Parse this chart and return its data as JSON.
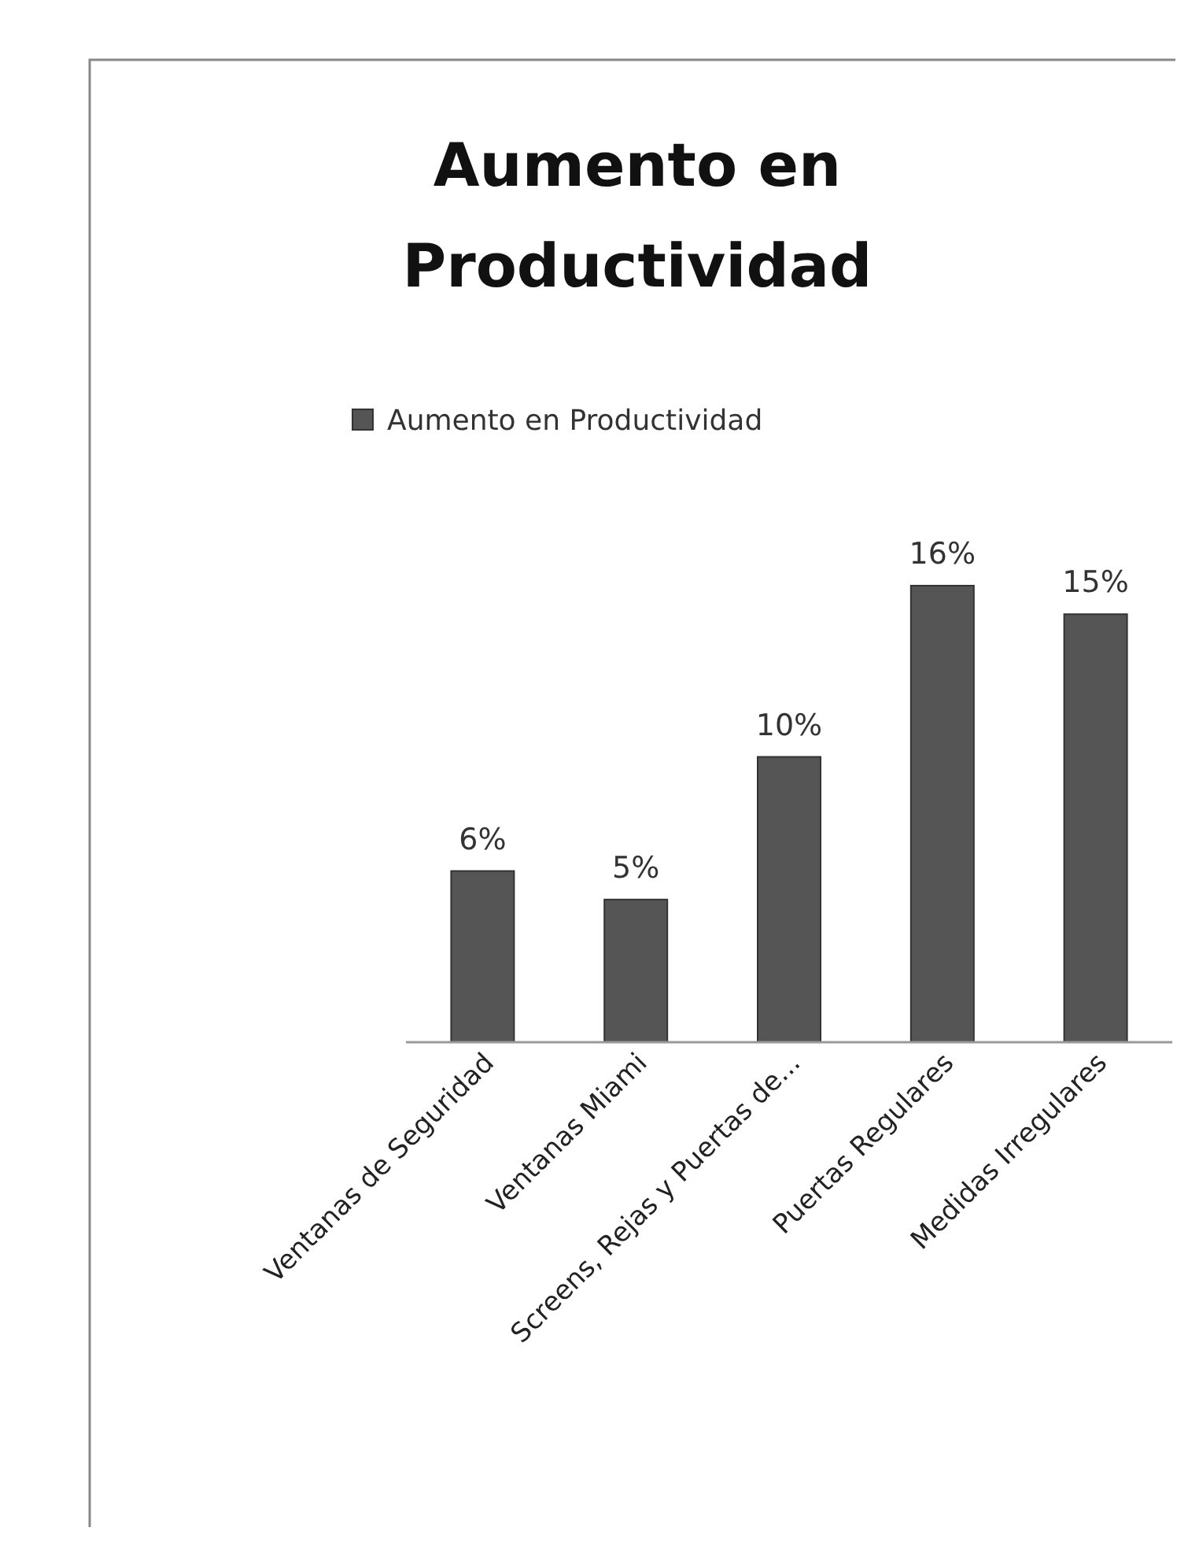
{
  "chart_data": {
    "type": "bar",
    "title": "Aumento en Productividad",
    "categories": [
      "Ventanas de Seguridad",
      "Ventanas Miami",
      "Screens, Rejas y Puertas de...",
      "Puertas Regulares",
      "Medidas Irregulares"
    ],
    "series": [
      {
        "name": "Aumento en Productividad",
        "color": "#555555",
        "values": [
          6,
          5,
          10,
          16,
          15
        ],
        "value_labels": [
          "6%",
          "5%",
          "10%",
          "16%",
          "15%"
        ]
      }
    ],
    "legend": "top"
  }
}
